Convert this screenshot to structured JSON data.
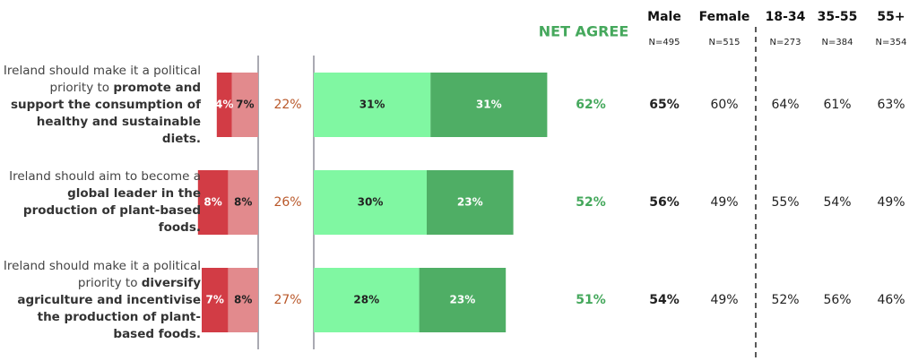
{
  "chart_data": {
    "type": "diverging_bar",
    "title": "NET AGREE",
    "categories": [
      {
        "plain": "Ireland should make it a political priority to ",
        "bold": "promote and support the consumption of healthy and sustainable diets."
      },
      {
        "plain": "Ireland should aim to become a ",
        "bold": "global leader in the production of plant-based foods."
      },
      {
        "plain": "Ireland should make it a political priority to ",
        "bold": "diversify agriculture and incentivise the production of plant-based foods."
      }
    ],
    "series": [
      {
        "side": "left",
        "color": "#d23c45",
        "values": [
          4,
          8,
          7
        ],
        "value_labels": [
          "4%",
          "8%",
          "7%"
        ]
      },
      {
        "side": "left",
        "color": "#e28a8d",
        "values": [
          7,
          8,
          8
        ],
        "value_labels": [
          "7%",
          "8%",
          "8%"
        ]
      },
      {
        "side": "right",
        "color": "#80f7a2",
        "values": [
          31,
          30,
          28
        ],
        "value_labels": [
          "31%",
          "30%",
          "28%"
        ]
      },
      {
        "side": "right",
        "color": "#4fae65",
        "values": [
          31,
          23,
          23
        ],
        "value_labels": [
          "31%",
          "23%",
          "23%"
        ]
      }
    ],
    "net_disagree": {
      "color": "#b9582a",
      "values": [
        22,
        26,
        27
      ],
      "value_labels": [
        "22%",
        "26%",
        "27%"
      ]
    },
    "net_agree": {
      "color": "#45a85c",
      "values": [
        62,
        52,
        51
      ],
      "value_labels": [
        "62%",
        "52%",
        "51%"
      ]
    },
    "table": {
      "columns": [
        {
          "label": "Male",
          "n": "N=495"
        },
        {
          "label": "Female",
          "n": "N=515"
        },
        {
          "label": "18-34",
          "n": "N=273"
        },
        {
          "label": "35-55",
          "n": "N=384"
        },
        {
          "label": "55+",
          "n": "N=354"
        }
      ],
      "rows": [
        {
          "values": [
            65,
            60,
            64,
            61,
            63
          ],
          "value_labels": [
            "65%",
            "60%",
            "64%",
            "61%",
            "63%"
          ]
        },
        {
          "values": [
            56,
            49,
            55,
            54,
            49
          ],
          "value_labels": [
            "56%",
            "49%",
            "55%",
            "54%",
            "49%"
          ]
        },
        {
          "values": [
            54,
            49,
            52,
            56,
            46
          ],
          "value_labels": [
            "54%",
            "49%",
            "52%",
            "56%",
            "46%"
          ]
        }
      ]
    }
  }
}
